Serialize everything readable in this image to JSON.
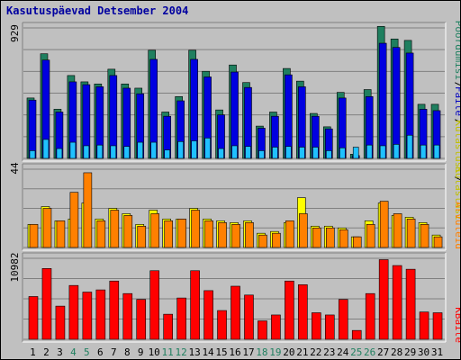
{
  "title": "Kasutuspäevad Detsember 2004",
  "colors": {
    "background": "#c0c0c0",
    "title": "#0000a0",
    "weekend": "#208060",
    "grid": "#000000",
    "pages_side": "#208060",
    "files_side": "#0000c0",
    "visits_side": "#00a0c0",
    "sites_side": "#ff8000",
    "kb_side": "#ff0000",
    "hits_side": "#c0c000"
  },
  "right_labels": {
    "pages": "Pöördumisi",
    "files": "Faile",
    "hits_top": "Külastusi",
    "hits_mid": "Külastusi",
    "sites": "Arvuteid",
    "kbytes": "KBaite"
  },
  "chart_data": [
    {
      "type": "bar",
      "name": "top-panel",
      "ymax_label": "929",
      "ylim": [
        0,
        929
      ],
      "categories": [
        "1",
        "2",
        "3",
        "4",
        "5",
        "6",
        "7",
        "8",
        "9",
        "10",
        "11",
        "12",
        "13",
        "14",
        "15",
        "16",
        "17",
        "18",
        "19",
        "20",
        "21",
        "22",
        "23",
        "24",
        "25",
        "26",
        "27",
        "28",
        "29",
        "30",
        "31"
      ],
      "weekend_days": [
        "4",
        "5",
        "11",
        "12",
        "18",
        "19",
        "25",
        "26"
      ],
      "series": [
        {
          "name": "Pöördumisi",
          "color": "#1f7f5f",
          "values": [
            430,
            745,
            350,
            590,
            545,
            530,
            635,
            530,
            500,
            770,
            330,
            440,
            770,
            620,
            345,
            665,
            540,
            230,
            330,
            640,
            550,
            320,
            225,
            470,
            30,
            490,
            940,
            850,
            840,
            385,
            385
          ]
        },
        {
          "name": "Faile",
          "color": "#0000e0",
          "values": [
            415,
            700,
            330,
            545,
            525,
            510,
            590,
            500,
            460,
            705,
            300,
            410,
            705,
            580,
            310,
            615,
            505,
            215,
            300,
            595,
            510,
            300,
            210,
            430,
            20,
            440,
            820,
            790,
            750,
            350,
            340
          ]
        },
        {
          "name": "Külastusi",
          "color": "#20c0ff",
          "values": [
            55,
            135,
            70,
            115,
            90,
            95,
            90,
            85,
            115,
            115,
            60,
            120,
            125,
            145,
            70,
            90,
            85,
            55,
            80,
            85,
            80,
            80,
            55,
            75,
            80,
            95,
            90,
            100,
            165,
            95,
            95
          ]
        }
      ]
    },
    {
      "type": "bar",
      "name": "middle-panel",
      "ymax_label": "44",
      "ylim": [
        0,
        44
      ],
      "categories": [
        "1",
        "2",
        "3",
        "4",
        "5",
        "6",
        "7",
        "8",
        "9",
        "10",
        "11",
        "12",
        "13",
        "14",
        "15",
        "16",
        "17",
        "18",
        "19",
        "20",
        "21",
        "22",
        "23",
        "24",
        "25",
        "26",
        "27",
        "28",
        "29",
        "30",
        "31"
      ],
      "series": [
        {
          "name": "Külastusi",
          "color": "#ffff00",
          "values": [
            13,
            23,
            15,
            16,
            25,
            16,
            22,
            19,
            13,
            21,
            16,
            16,
            22,
            16,
            15,
            14,
            15,
            8,
            9,
            14,
            28,
            12,
            12,
            11,
            6,
            15,
            25,
            18,
            17,
            14,
            7
          ]
        },
        {
          "name": "Arvuteid",
          "color": "#ff8000",
          "values": [
            13,
            22,
            15,
            31,
            42,
            15,
            21,
            18,
            12,
            19,
            15,
            16,
            21,
            15,
            14,
            13,
            14,
            7,
            8,
            15,
            19,
            11,
            11,
            10,
            6,
            13,
            26,
            19,
            16,
            13,
            6
          ]
        }
      ]
    },
    {
      "type": "bar",
      "name": "bottom-panel",
      "ymax_label": "10982",
      "ylim": [
        0,
        10982
      ],
      "categories": [
        "1",
        "2",
        "3",
        "4",
        "5",
        "6",
        "7",
        "8",
        "9",
        "10",
        "11",
        "12",
        "13",
        "14",
        "15",
        "16",
        "17",
        "18",
        "19",
        "20",
        "21",
        "22",
        "23",
        "24",
        "25",
        "26",
        "27",
        "28",
        "29",
        "30",
        "31"
      ],
      "series": [
        {
          "name": "KBaite",
          "color": "#ff0000",
          "values": [
            5800,
            9600,
            4500,
            7300,
            6400,
            6700,
            7900,
            6200,
            5400,
            9300,
            3400,
            5600,
            9300,
            6600,
            3900,
            7200,
            6000,
            2500,
            3300,
            7900,
            7400,
            3600,
            3300,
            5400,
            1200,
            6200,
            10800,
            10000,
            9500,
            3700,
            3600
          ]
        }
      ]
    }
  ]
}
